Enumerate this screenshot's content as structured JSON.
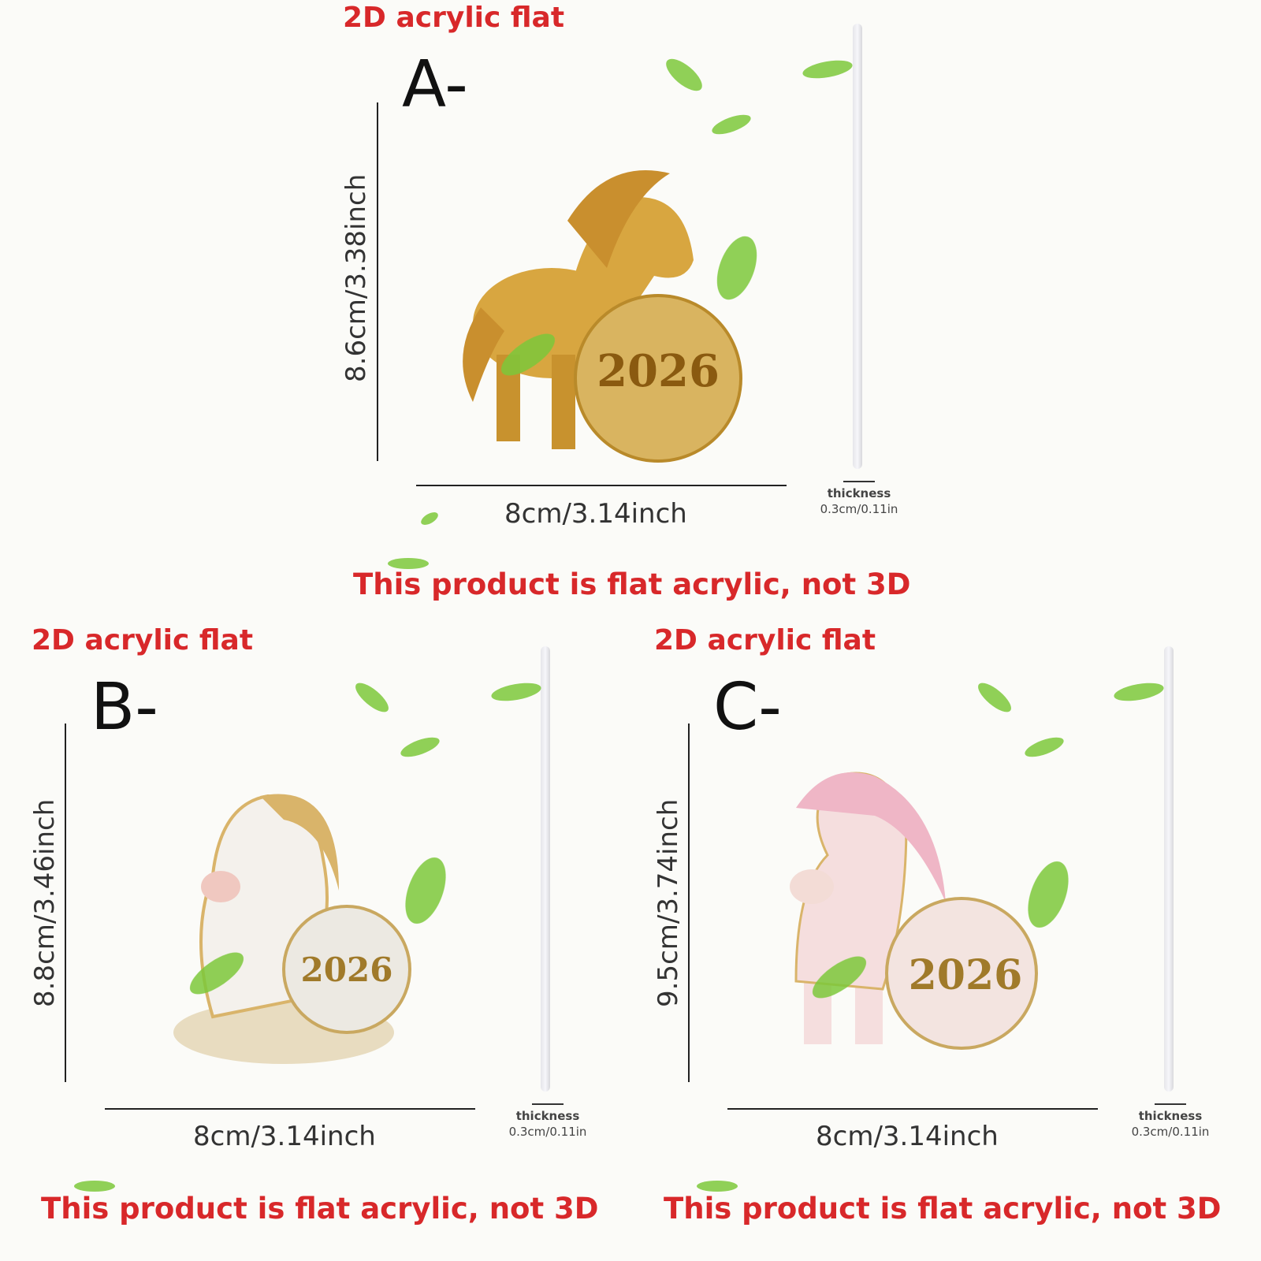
{
  "panels": [
    {
      "id": "A",
      "header": "2D acrylic flat",
      "letter": "A-",
      "height_label": "8.6cm/3.38inch",
      "width_label": "8cm/3.14inch",
      "thickness_label": "thickness",
      "thickness_value": "0.3cm/0.11in",
      "note": "This product is flat acrylic, not 3D",
      "colors": {
        "body": "#d8a640",
        "ball": "#d9b460",
        "mane": "#c98f2e"
      },
      "ball_text": "2026"
    },
    {
      "id": "B",
      "header": "2D acrylic flat",
      "letter": "B-",
      "height_label": "8.8cm/3.46inch",
      "width_label": "8cm/3.14inch",
      "thickness_label": "thickness",
      "thickness_value": "0.3cm/0.11in",
      "note": "This product is flat acrylic, not 3D",
      "colors": {
        "body": "#f4f1ec",
        "ball": "#ece9e2",
        "mane": "#d9b46a"
      },
      "ball_text": "2026"
    },
    {
      "id": "C",
      "header": "2D acrylic flat",
      "letter": "C-",
      "height_label": "9.5cm/3.74inch",
      "width_label": "8cm/3.14inch",
      "thickness_label": "thickness",
      "thickness_value": "0.3cm/0.11in",
      "note": "This product is flat acrylic, not 3D",
      "colors": {
        "body": "#f5dede",
        "ball": "#f3e4e0",
        "mane": "#efb6c6"
      },
      "ball_text": "2026"
    }
  ],
  "colors": {
    "text_red": "#d8282a",
    "leaf": "#7cc83a"
  }
}
